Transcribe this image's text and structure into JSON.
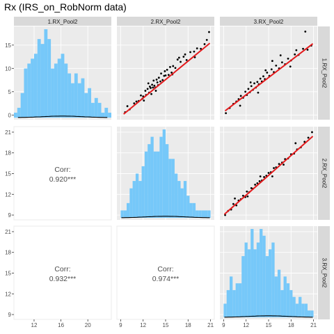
{
  "title": "Rx (IRS_on_RobNorm data)",
  "colors": {
    "panel_bg": "#ebebeb",
    "grid_major": "#ffffff",
    "strip_bg": "#d9d9d9",
    "hist_fill": "#76c8f9",
    "point": "#000000",
    "fit_line": "#e31a1c",
    "density": "#000000",
    "corr_text": "#4d4d4d"
  },
  "chart_data": {
    "type": "scatterplot-matrix",
    "variables": [
      "1.RX_Pool2",
      "2.RX_Pool2",
      "3.RX_Pool2"
    ],
    "axes": {
      "x": [
        {
          "range": [
            9,
            23.5
          ],
          "ticks": [
            12,
            16,
            20
          ]
        },
        {
          "range": [
            8.5,
            21.5
          ],
          "ticks": [
            9,
            12,
            15,
            18,
            21
          ]
        },
        {
          "range": [
            8.5,
            21.5
          ],
          "ticks": [
            9,
            12,
            15,
            18,
            21
          ]
        }
      ],
      "y": [
        {
          "range": [
            -1,
            19
          ],
          "ticks": [
            0,
            5,
            10,
            15
          ]
        },
        {
          "range": [
            8.3,
            21.8
          ],
          "ticks": [
            9,
            12,
            15,
            18,
            21
          ]
        },
        {
          "range": [
            8.3,
            21.8
          ],
          "ticks": [
            9,
            12,
            15,
            18,
            21
          ]
        }
      ]
    },
    "histograms": [
      {
        "variable": "1.RX_Pool2",
        "bin_start": 9.0,
        "bin_width": 0.5,
        "counts": [
          1,
          2,
          5,
          10,
          11,
          12,
          13,
          16,
          15,
          18,
          16,
          10,
          11,
          12,
          13,
          11,
          9,
          7,
          9,
          7,
          8,
          5,
          6,
          3,
          4,
          3,
          1,
          2,
          1
        ]
      },
      {
        "variable": "2.RX_Pool2",
        "bin_start": 9.0,
        "bin_width": 0.4,
        "counts": [
          1,
          1,
          2,
          4,
          5,
          6,
          5,
          7,
          9,
          10,
          11,
          9,
          9,
          11,
          12,
          10,
          8,
          8,
          6,
          5,
          4,
          5,
          3,
          2,
          2,
          1,
          1,
          1,
          1,
          1
        ]
      },
      {
        "variable": "3.RX_Pool2",
        "bin_start": 9.0,
        "bin_width": 0.4,
        "counts": [
          2,
          4,
          6,
          4,
          5,
          5,
          9,
          11,
          10,
          13,
          10,
          11,
          13,
          12,
          9,
          10,
          11,
          6,
          7,
          4,
          6,
          5,
          4,
          3,
          2,
          3,
          2,
          2,
          1,
          1
        ]
      }
    ],
    "correlations": [
      {
        "row": 2,
        "col": 1,
        "label": "Corr:",
        "value": "0.920***"
      },
      {
        "row": 3,
        "col": 1,
        "label": "Corr:",
        "value": "0.932***"
      },
      {
        "row": 3,
        "col": 2,
        "label": "Corr:",
        "value": "0.974***"
      }
    ],
    "scatter": [
      {
        "row": 1,
        "col": 2,
        "x": [
          10.2,
          10.8,
          11.1,
          11.4,
          11.7,
          12.0,
          12.1,
          12.3,
          12.4,
          12.6,
          12.8,
          12.9,
          13.0,
          13.1,
          13.2,
          13.3,
          13.4,
          13.5,
          13.6,
          13.8,
          13.9,
          14.0,
          14.1,
          14.3,
          14.4,
          14.6,
          14.8,
          15.0,
          15.2,
          15.4,
          15.6,
          15.8,
          16.0,
          16.3,
          16.6,
          17.0,
          17.4,
          17.8,
          18.3,
          18.8,
          19.2,
          19.7,
          20.2,
          20.8,
          9.6,
          9.9,
          11.9,
          12.7,
          13.7,
          14.9,
          15.9,
          16.8,
          17.6,
          18.9,
          20.5
        ],
        "y": [
          1.2,
          2.5,
          2.9,
          3.0,
          4.2,
          4.0,
          3.1,
          5.2,
          4.3,
          5.6,
          4.8,
          6.1,
          5.8,
          4.5,
          6.5,
          5.9,
          7.4,
          6.3,
          5.9,
          7.6,
          7.0,
          6.4,
          8.0,
          7.2,
          8.9,
          7.5,
          8.4,
          8.5,
          9.7,
          8.6,
          10.3,
          9.1,
          10.5,
          10.1,
          11.9,
          11.4,
          12.5,
          11.8,
          13.5,
          13.6,
          14.3,
          14.2,
          15.2,
          17.8,
          0.6,
          1.9,
          3.5,
          6.8,
          5.2,
          9.4,
          8.7,
          12.3,
          13.0,
          12.4,
          16.1
        ],
        "fit": {
          "x": [
            9.4,
            20.9
          ],
          "y": [
            0.2,
            15.4
          ]
        }
      },
      {
        "row": 1,
        "col": 3,
        "x": [
          9.8,
          10.3,
          10.7,
          11.0,
          11.3,
          11.6,
          11.9,
          12.1,
          12.3,
          12.5,
          12.7,
          12.9,
          13.1,
          13.3,
          13.5,
          13.7,
          13.9,
          14.1,
          14.3,
          14.5,
          14.8,
          15.1,
          15.4,
          15.7,
          16.0,
          16.4,
          16.8,
          17.2,
          17.6,
          18.0,
          18.5,
          19.0,
          19.6,
          20.2,
          20.7,
          9.3,
          11.2,
          12.6,
          13.6,
          14.6,
          15.5,
          16.6,
          17.9,
          18.7,
          19.9
        ],
        "y": [
          1.5,
          2.4,
          2.9,
          3.4,
          4.1,
          3.7,
          5.0,
          4.3,
          5.6,
          4.9,
          6.2,
          5.4,
          6.8,
          5.9,
          7.1,
          6.6,
          7.8,
          7.2,
          8.3,
          7.7,
          9.1,
          8.4,
          9.8,
          9.2,
          10.6,
          10.0,
          11.3,
          10.9,
          12.1,
          11.7,
          13.0,
          12.9,
          14.2,
          14.0,
          14.9,
          0.4,
          2.0,
          7.0,
          4.8,
          9.6,
          11.6,
          12.8,
          10.4,
          13.9,
          17.9
        ],
        "fit": {
          "x": [
            9.2,
            20.9
          ],
          "y": [
            0.9,
            15.3
          ]
        }
      },
      {
        "row": 2,
        "col": 3,
        "x": [
          9.2,
          9.6,
          10.0,
          10.3,
          10.7,
          11.0,
          11.3,
          11.6,
          11.9,
          12.1,
          12.4,
          12.7,
          12.9,
          13.2,
          13.5,
          13.8,
          14.1,
          14.4,
          14.7,
          15.0,
          15.3,
          15.7,
          16.0,
          16.4,
          16.8,
          17.2,
          17.6,
          18.0,
          18.4,
          18.8,
          19.3,
          19.8,
          20.3,
          20.8,
          10.5,
          12.2,
          13.9,
          15.5,
          17.0,
          18.6
        ],
        "y": [
          9.0,
          9.6,
          9.8,
          10.6,
          10.4,
          11.1,
          11.3,
          11.8,
          11.6,
          12.4,
          12.3,
          12.9,
          12.8,
          13.4,
          13.6,
          13.9,
          14.0,
          14.5,
          14.7,
          15.1,
          15.2,
          15.8,
          15.9,
          16.4,
          16.6,
          17.1,
          17.2,
          17.8,
          17.9,
          18.5,
          18.8,
          19.6,
          20.2,
          21.0,
          11.4,
          11.7,
          14.6,
          14.6,
          16.3,
          19.4
        ],
        "fit": {
          "x": [
            9.1,
            20.9
          ],
          "y": [
            9.1,
            20.4
          ]
        }
      }
    ]
  }
}
